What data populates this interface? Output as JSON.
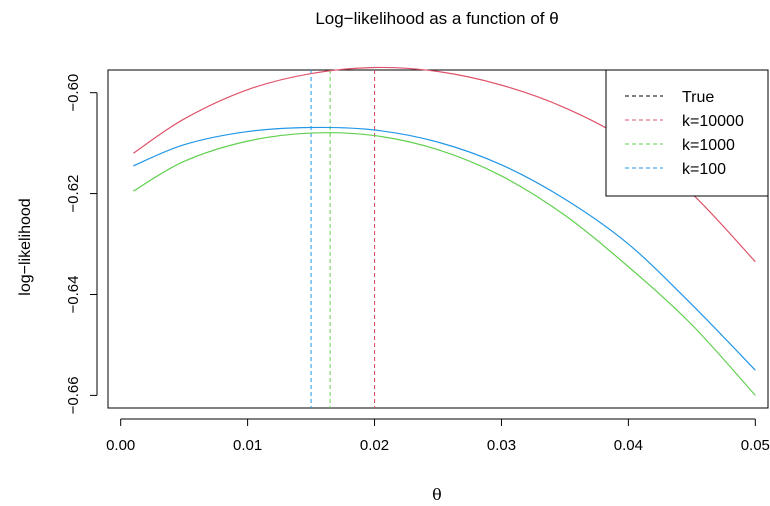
{
  "chart_data": {
    "type": "line",
    "title": "Log−likelihood as a function of θ",
    "xlabel": "θ",
    "ylabel": "log−likelihood",
    "xlim": [
      -0.001,
      0.051
    ],
    "ylim": [
      -0.6625,
      -0.5955
    ],
    "xticks": [
      {
        "value": 0.0,
        "label": "0.00"
      },
      {
        "value": 0.01,
        "label": "0.01"
      },
      {
        "value": 0.02,
        "label": "0.02"
      },
      {
        "value": 0.03,
        "label": "0.03"
      },
      {
        "value": 0.04,
        "label": "0.04"
      },
      {
        "value": 0.05,
        "label": "0.05"
      }
    ],
    "yticks": [
      {
        "value": -0.6,
        "label": "−0.60"
      },
      {
        "value": -0.62,
        "label": "−0.62"
      },
      {
        "value": -0.64,
        "label": "−0.64"
      },
      {
        "value": -0.66,
        "label": "−0.66"
      }
    ],
    "grid": false,
    "legend_position": "top-right",
    "series": [
      {
        "name": "k=10000",
        "color": "#DF536B",
        "x": [
          0.001,
          0.005,
          0.01,
          0.015,
          0.02,
          0.025,
          0.03,
          0.035,
          0.04,
          0.045,
          0.05
        ],
        "y": [
          -0.612,
          -0.6052,
          -0.5994,
          -0.5962,
          -0.595,
          -0.5958,
          -0.5985,
          -0.603,
          -0.6097,
          -0.62,
          -0.6335
        ]
      },
      {
        "name": "k=1000",
        "color": "#61D04F",
        "x": [
          0.001,
          0.005,
          0.01,
          0.015,
          0.02,
          0.025,
          0.03,
          0.035,
          0.04,
          0.045,
          0.05
        ],
        "y": [
          -0.6195,
          -0.6136,
          -0.6096,
          -0.608,
          -0.6085,
          -0.6113,
          -0.6165,
          -0.6243,
          -0.6345,
          -0.646,
          -0.66
        ]
      },
      {
        "name": "k=100",
        "color": "#2297E6",
        "x": [
          0.001,
          0.005,
          0.01,
          0.015,
          0.02,
          0.025,
          0.03,
          0.035,
          0.04,
          0.045,
          0.05
        ],
        "y": [
          -0.6145,
          -0.6103,
          -0.6077,
          -0.6069,
          -0.6074,
          -0.6098,
          -0.6143,
          -0.6211,
          -0.63,
          -0.642,
          -0.655
        ]
      }
    ],
    "vlines": [
      {
        "name": "True",
        "x": 0.02,
        "color": "#000000"
      },
      {
        "name": "k=10000",
        "x": 0.02,
        "color": "#DF536B"
      },
      {
        "name": "k=1000",
        "x": 0.0165,
        "color": "#61D04F"
      },
      {
        "name": "k=100",
        "x": 0.015,
        "color": "#2297E6"
      }
    ],
    "legend": [
      {
        "label": "True",
        "color": "#000000"
      },
      {
        "label": "k=10000",
        "color": "#DF536B"
      },
      {
        "label": "k=1000",
        "color": "#61D04F"
      },
      {
        "label": "k=100",
        "color": "#2297E6"
      }
    ]
  }
}
